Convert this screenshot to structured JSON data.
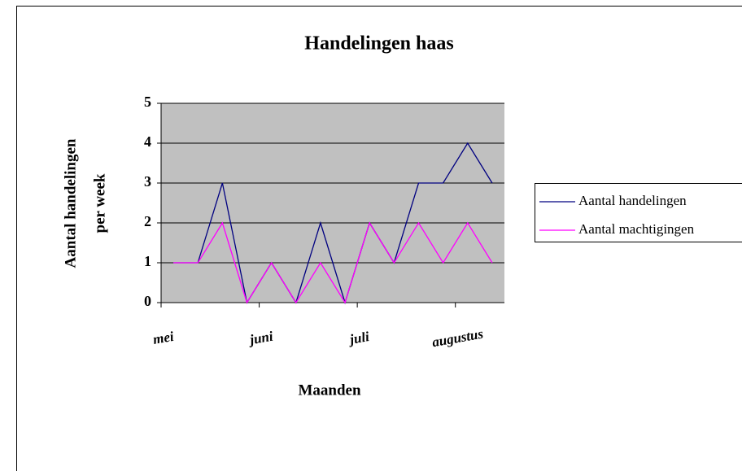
{
  "chart_data": {
    "type": "line",
    "title": "Handelingen haas",
    "ylabel": [
      "Aantal handelingen",
      "per week"
    ],
    "xlabel": "Maanden",
    "categories": [
      "mei",
      null,
      null,
      null,
      "juni",
      null,
      null,
      null,
      "juli",
      null,
      null,
      null,
      "augustus",
      null
    ],
    "series": [
      {
        "name": "Aantal handelingen",
        "color": "#000080",
        "values": [
          1,
          1,
          3,
          0,
          1,
          0,
          2,
          0,
          2,
          1,
          3,
          3,
          4,
          3
        ]
      },
      {
        "name": "Aantal machtigingen",
        "color": "#ff00ff",
        "values": [
          1,
          1,
          2,
          0,
          1,
          0,
          1,
          0,
          2,
          1,
          2,
          1,
          2,
          1
        ]
      }
    ],
    "ylim": [
      0,
      5
    ],
    "yticks": [
      0,
      1,
      2,
      3,
      4,
      5
    ],
    "grid": true,
    "plot_background": "#c0c0c0",
    "legend": "right"
  }
}
